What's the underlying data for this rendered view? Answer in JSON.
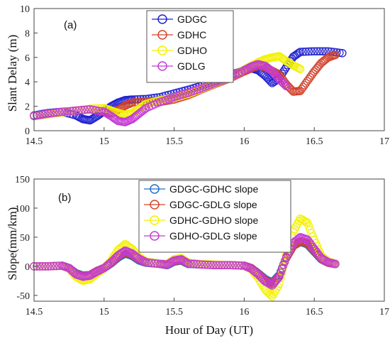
{
  "chart_data": [
    {
      "type": "scatter",
      "panel_label": "(a)",
      "xlabel": "",
      "ylabel": "Slant Delay (m)",
      "xlim": [
        14.5,
        17
      ],
      "ylim": [
        0,
        10
      ],
      "xticks": [
        "14.5",
        "15",
        "15.5",
        "16",
        "16.5",
        "17"
      ],
      "yticks": [
        "0",
        "2",
        "4",
        "6",
        "8",
        "10"
      ],
      "grid": false,
      "legend_position": "top-center",
      "series": [
        {
          "name": "GDGC",
          "color": "#1f1fd0",
          "points": [
            [
              14.5,
              1.25
            ],
            [
              14.6,
              1.45
            ],
            [
              14.7,
              1.55
            ],
            [
              14.8,
              1.25
            ],
            [
              14.85,
              0.95
            ],
            [
              14.9,
              0.85
            ],
            [
              14.95,
              1.2
            ],
            [
              15.0,
              1.6
            ],
            [
              15.05,
              2.0
            ],
            [
              15.1,
              2.3
            ],
            [
              15.15,
              2.5
            ],
            [
              15.2,
              2.55
            ],
            [
              15.3,
              2.6
            ],
            [
              15.4,
              2.75
            ],
            [
              15.5,
              3.05
            ],
            [
              15.6,
              3.35
            ],
            [
              15.7,
              3.7
            ],
            [
              15.8,
              4.1
            ],
            [
              15.9,
              4.55
            ],
            [
              16.0,
              4.95
            ],
            [
              16.05,
              5.1
            ],
            [
              16.1,
              4.95
            ],
            [
              16.15,
              4.5
            ],
            [
              16.2,
              3.9
            ],
            [
              16.25,
              4.3
            ],
            [
              16.3,
              5.2
            ],
            [
              16.35,
              6.05
            ],
            [
              16.4,
              6.45
            ],
            [
              16.5,
              6.5
            ],
            [
              16.6,
              6.5
            ],
            [
              16.7,
              6.35
            ]
          ]
        },
        {
          "name": "GDHC",
          "color": "#d2432b",
          "points": [
            [
              14.5,
              1.2
            ],
            [
              14.6,
              1.35
            ],
            [
              14.7,
              1.5
            ],
            [
              14.8,
              1.65
            ],
            [
              14.9,
              1.75
            ],
            [
              15.0,
              1.55
            ],
            [
              15.05,
              1.4
            ],
            [
              15.1,
              1.7
            ],
            [
              15.15,
              2.05
            ],
            [
              15.2,
              2.3
            ],
            [
              15.3,
              2.4
            ],
            [
              15.4,
              2.35
            ],
            [
              15.5,
              2.55
            ],
            [
              15.6,
              2.9
            ],
            [
              15.7,
              3.4
            ],
            [
              15.8,
              3.85
            ],
            [
              15.9,
              4.3
            ],
            [
              16.0,
              4.85
            ],
            [
              16.05,
              5.1
            ],
            [
              16.1,
              5.35
            ],
            [
              16.15,
              5.2
            ],
            [
              16.2,
              4.9
            ],
            [
              16.25,
              4.6
            ],
            [
              16.3,
              3.8
            ],
            [
              16.35,
              3.2
            ],
            [
              16.4,
              3.25
            ],
            [
              16.45,
              4.05
            ],
            [
              16.5,
              4.85
            ],
            [
              16.55,
              5.55
            ],
            [
              16.6,
              6.0
            ],
            [
              16.65,
              6.2
            ]
          ]
        },
        {
          "name": "GDHO",
          "color": "#f2f200",
          "points": [
            [
              14.5,
              1.2
            ],
            [
              14.6,
              1.35
            ],
            [
              14.7,
              1.5
            ],
            [
              14.8,
              1.65
            ],
            [
              14.9,
              1.8
            ],
            [
              15.0,
              1.85
            ],
            [
              15.05,
              1.65
            ],
            [
              15.1,
              1.45
            ],
            [
              15.15,
              1.3
            ],
            [
              15.2,
              1.45
            ],
            [
              15.25,
              1.8
            ],
            [
              15.3,
              2.2
            ],
            [
              15.4,
              2.5
            ],
            [
              15.5,
              2.7
            ],
            [
              15.6,
              3.0
            ],
            [
              15.7,
              3.45
            ],
            [
              15.8,
              3.9
            ],
            [
              15.9,
              4.4
            ],
            [
              16.0,
              5.0
            ],
            [
              16.05,
              5.3
            ],
            [
              16.1,
              5.6
            ],
            [
              16.15,
              5.85
            ],
            [
              16.2,
              6.0
            ],
            [
              16.25,
              6.1
            ],
            [
              16.3,
              5.7
            ],
            [
              16.35,
              5.35
            ],
            [
              16.4,
              5.05
            ]
          ]
        },
        {
          "name": "GDLG",
          "color": "#c43ad6",
          "points": [
            [
              14.5,
              1.2
            ],
            [
              14.6,
              1.4
            ],
            [
              14.7,
              1.55
            ],
            [
              14.8,
              1.65
            ],
            [
              14.9,
              1.75
            ],
            [
              15.0,
              1.55
            ],
            [
              15.05,
              1.2
            ],
            [
              15.1,
              0.8
            ],
            [
              15.15,
              0.7
            ],
            [
              15.2,
              0.95
            ],
            [
              15.25,
              1.4
            ],
            [
              15.3,
              1.85
            ],
            [
              15.4,
              2.35
            ],
            [
              15.5,
              2.75
            ],
            [
              15.6,
              3.1
            ],
            [
              15.7,
              3.5
            ],
            [
              15.8,
              3.95
            ],
            [
              15.9,
              4.4
            ],
            [
              16.0,
              4.95
            ],
            [
              16.05,
              5.25
            ],
            [
              16.1,
              5.45
            ],
            [
              16.15,
              5.3
            ],
            [
              16.2,
              4.85
            ],
            [
              16.25,
              4.2
            ],
            [
              16.3,
              3.65
            ]
          ]
        }
      ]
    },
    {
      "type": "scatter",
      "panel_label": "(b)",
      "xlabel": "Hour of Day (UT)",
      "ylabel": "Slope(mm/km)",
      "xlim": [
        14.5,
        17
      ],
      "ylim": [
        -60,
        150
      ],
      "xticks": [
        "14.5",
        "15",
        "15.5",
        "16",
        "16.5",
        "17"
      ],
      "yticks": [
        "-50",
        "0",
        "50",
        "100",
        "150"
      ],
      "grid": false,
      "legend_position": "top-center",
      "series": [
        {
          "name": "GDGC-GDHC slope",
          "color": "#1f6fc4",
          "points": [
            [
              14.5,
              0
            ],
            [
              14.6,
              0
            ],
            [
              14.7,
              1
            ],
            [
              14.75,
              -3
            ],
            [
              14.8,
              -12
            ],
            [
              14.85,
              -16
            ],
            [
              14.9,
              -15
            ],
            [
              14.95,
              -8
            ],
            [
              15.0,
              -3
            ],
            [
              15.05,
              5
            ],
            [
              15.1,
              15
            ],
            [
              15.15,
              22
            ],
            [
              15.2,
              18
            ],
            [
              15.25,
              10
            ],
            [
              15.3,
              6
            ],
            [
              15.4,
              4
            ],
            [
              15.45,
              2
            ],
            [
              15.5,
              8
            ],
            [
              15.55,
              10
            ],
            [
              15.6,
              4
            ],
            [
              15.7,
              3
            ],
            [
              15.8,
              2
            ],
            [
              15.9,
              2
            ],
            [
              16.0,
              1
            ],
            [
              16.05,
              -3
            ],
            [
              16.1,
              -12
            ],
            [
              16.15,
              -22
            ],
            [
              16.2,
              -28
            ],
            [
              16.25,
              -15
            ],
            [
              16.3,
              15
            ],
            [
              16.35,
              35
            ],
            [
              16.4,
              42
            ],
            [
              16.45,
              38
            ],
            [
              16.5,
              25
            ],
            [
              16.55,
              12
            ],
            [
              16.6,
              6
            ],
            [
              16.65,
              4
            ]
          ]
        },
        {
          "name": "GDGC-GDLG slope",
          "color": "#d2432b",
          "points": [
            [
              14.5,
              0
            ],
            [
              14.6,
              0
            ],
            [
              14.7,
              1
            ],
            [
              14.75,
              -3
            ],
            [
              14.8,
              -13
            ],
            [
              14.85,
              -17
            ],
            [
              14.9,
              -15
            ],
            [
              14.95,
              -8
            ],
            [
              15.0,
              -3
            ],
            [
              15.05,
              6
            ],
            [
              15.1,
              17
            ],
            [
              15.15,
              25
            ],
            [
              15.2,
              20
            ],
            [
              15.25,
              12
            ],
            [
              15.3,
              7
            ],
            [
              15.4,
              4
            ],
            [
              15.45,
              3
            ],
            [
              15.5,
              9
            ],
            [
              15.55,
              11
            ],
            [
              15.6,
              5
            ],
            [
              15.7,
              3
            ],
            [
              15.8,
              2
            ],
            [
              15.9,
              2
            ],
            [
              16.0,
              1
            ],
            [
              16.05,
              -3
            ],
            [
              16.1,
              -13
            ],
            [
              16.15,
              -24
            ],
            [
              16.2,
              -30
            ],
            [
              16.25,
              -17
            ],
            [
              16.3,
              14
            ],
            [
              16.35,
              35
            ],
            [
              16.4,
              43
            ],
            [
              16.45,
              40
            ],
            [
              16.5,
              27
            ],
            [
              16.55,
              13
            ],
            [
              16.6,
              6
            ],
            [
              16.65,
              4
            ]
          ]
        },
        {
          "name": "GDHC-GDHO slope",
          "color": "#f2f200",
          "points": [
            [
              14.5,
              0
            ],
            [
              14.6,
              0
            ],
            [
              14.7,
              1
            ],
            [
              14.75,
              -4
            ],
            [
              14.8,
              -18
            ],
            [
              14.85,
              -25
            ],
            [
              14.9,
              -22
            ],
            [
              14.95,
              -12
            ],
            [
              15.0,
              -4
            ],
            [
              15.05,
              10
            ],
            [
              15.1,
              28
            ],
            [
              15.15,
              38
            ],
            [
              15.2,
              30
            ],
            [
              15.25,
              16
            ],
            [
              15.3,
              8
            ],
            [
              15.4,
              5
            ],
            [
              15.45,
              4
            ],
            [
              15.5,
              12
            ],
            [
              15.55,
              14
            ],
            [
              15.6,
              6
            ],
            [
              15.7,
              4
            ],
            [
              15.8,
              3
            ],
            [
              15.9,
              2
            ],
            [
              16.0,
              1
            ],
            [
              16.05,
              -5
            ],
            [
              16.1,
              -20
            ],
            [
              16.15,
              -40
            ],
            [
              16.2,
              -52
            ],
            [
              16.25,
              -30
            ],
            [
              16.3,
              20
            ],
            [
              16.35,
              60
            ],
            [
              16.4,
              82
            ],
            [
              16.45,
              75
            ],
            [
              16.5,
              45
            ],
            [
              16.55,
              18
            ],
            [
              16.6,
              8
            ],
            [
              16.65,
              5
            ]
          ]
        },
        {
          "name": "GDHO-GDLG slope",
          "color": "#c43ad6",
          "points": [
            [
              14.5,
              0
            ],
            [
              14.6,
              0
            ],
            [
              14.7,
              1
            ],
            [
              14.75,
              -3
            ],
            [
              14.8,
              -14
            ],
            [
              14.85,
              -18
            ],
            [
              14.9,
              -16
            ],
            [
              14.95,
              -9
            ],
            [
              15.0,
              -3
            ],
            [
              15.05,
              7
            ],
            [
              15.1,
              19
            ],
            [
              15.15,
              27
            ],
            [
              15.2,
              22
            ],
            [
              15.25,
              13
            ],
            [
              15.3,
              7
            ],
            [
              15.4,
              4
            ],
            [
              15.45,
              3
            ],
            [
              15.5,
              10
            ],
            [
              15.55,
              12
            ],
            [
              15.6,
              5
            ],
            [
              15.7,
              3
            ],
            [
              15.8,
              2
            ],
            [
              15.9,
              2
            ],
            [
              16.0,
              1
            ],
            [
              16.05,
              -4
            ],
            [
              16.1,
              -14
            ],
            [
              16.15,
              -26
            ],
            [
              16.2,
              -33
            ],
            [
              16.25,
              -18
            ],
            [
              16.3,
              16
            ],
            [
              16.35,
              40
            ],
            [
              16.4,
              50
            ],
            [
              16.45,
              46
            ],
            [
              16.5,
              30
            ],
            [
              16.55,
              14
            ],
            [
              16.6,
              7
            ],
            [
              16.65,
              4
            ]
          ]
        }
      ]
    }
  ]
}
